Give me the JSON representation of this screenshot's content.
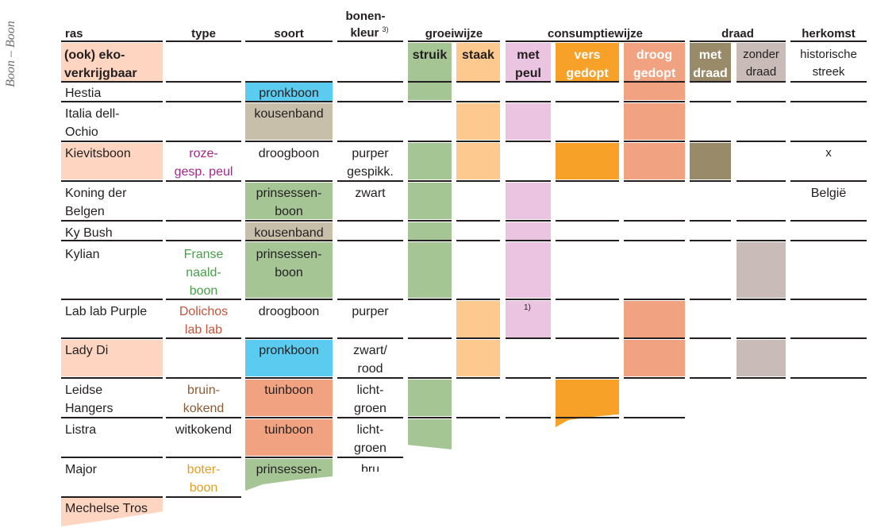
{
  "side_title": "Boon – Boon",
  "colors": {
    "eko": "#fdd5c0",
    "pronkboon": "#5ccbf0",
    "kousenband": "#c8bfaa",
    "prinsessenboon": "#a5c595",
    "droogboon": "#ffffff",
    "tuinboon": "#f1a281",
    "struik": "#a5c595",
    "staak": "#fdc98f",
    "met_peul": "#eac4e0",
    "vers_gedopt": "#f7a128",
    "droog_gedopt": "#f1a281",
    "met_draad": "#998a6a",
    "zonder_draad": "#c8bbb8",
    "type_purple": "#a3268b",
    "type_green": "#47a047",
    "type_red": "#c5553a",
    "type_brown": "#8c5b33",
    "type_yellow": "#e0a020"
  },
  "headers": {
    "ras": "ras",
    "type": "type",
    "soort": "soort",
    "bonenkleur_1": "bonen-",
    "bonenkleur_2": "kleur",
    "bonenkleur_sup": "3)",
    "groeiwijze": "groeiwijze",
    "consumptiewijze": "consumptiewijze",
    "draad": "draad",
    "herkomst": "herkomst",
    "eko_1": "(ook) eko-",
    "eko_2": "verkrijgbaar",
    "struik": "struik",
    "staak": "staak",
    "met_peul_1": "met",
    "met_peul_2": "peul",
    "vers_1": "vers",
    "vers_2": "gedopt",
    "droog_1": "droog",
    "droog_2": "gedopt",
    "met_draad_1": "met",
    "met_draad_2": "draad",
    "zonder_1": "zonder",
    "zonder_2": "draad",
    "herkomst_1": "historische",
    "herkomst_2": "streek"
  },
  "rows": [
    {
      "ras": "Hestia",
      "type": "",
      "soort": "pronkboon",
      "kleur": "",
      "herkomst": ""
    },
    {
      "ras_1": "Italia dell-",
      "ras_2": "Ochio",
      "type": "",
      "soort": "kousenband",
      "kleur": "",
      "herkomst": ""
    },
    {
      "ras": "Kievitsboon",
      "type_1": "roze-",
      "type_2": "gesp. peul",
      "soort": "droogboon",
      "kleur_1": "purper",
      "kleur_2": "gespikk.",
      "herkomst": "x"
    },
    {
      "ras_1": "Koning der",
      "ras_2": "Belgen",
      "type": "",
      "soort_1": "prinsessen-",
      "soort_2": "boon",
      "kleur": "zwart",
      "herkomst": "België"
    },
    {
      "ras": "Ky Bush",
      "type": "",
      "soort": "kousenband",
      "kleur": "",
      "herkomst": ""
    },
    {
      "ras": "Kylian",
      "type_1": "Franse",
      "type_2": "naald-",
      "type_3": "boon",
      "soort_1": "prinsessen-",
      "soort_2": "boon",
      "kleur": "",
      "herkomst": ""
    },
    {
      "ras": "Lab lab Purple",
      "type_1": "Dolichos",
      "type_2": "lab lab",
      "soort": "droogboon",
      "kleur": "purper",
      "footnote": "1)",
      "herkomst": ""
    },
    {
      "ras": "Lady Di",
      "type": "",
      "soort": "pronkboon",
      "kleur_1": "zwart/",
      "kleur_2": "rood",
      "herkomst": ""
    },
    {
      "ras_1": "Leidse",
      "ras_2": "Hangers",
      "type_1": "bruin-",
      "type_2": "kokend",
      "soort": "tuinboon",
      "kleur_1": "licht-",
      "kleur_2": "groen",
      "herkomst": ""
    },
    {
      "ras": "Listra",
      "type": "witkokend",
      "soort": "tuinboon",
      "kleur_1": "licht-",
      "kleur_2": "groen",
      "herkomst": ""
    },
    {
      "ras": "Major",
      "type_1": "boter-",
      "type_2": "boon",
      "soort": "prinsessen-",
      "kleur": "bru",
      "herkomst": ""
    },
    {
      "ras": "Mechelse Tros",
      "type": "",
      "soort": "",
      "kleur": "",
      "herkomst": ""
    }
  ]
}
